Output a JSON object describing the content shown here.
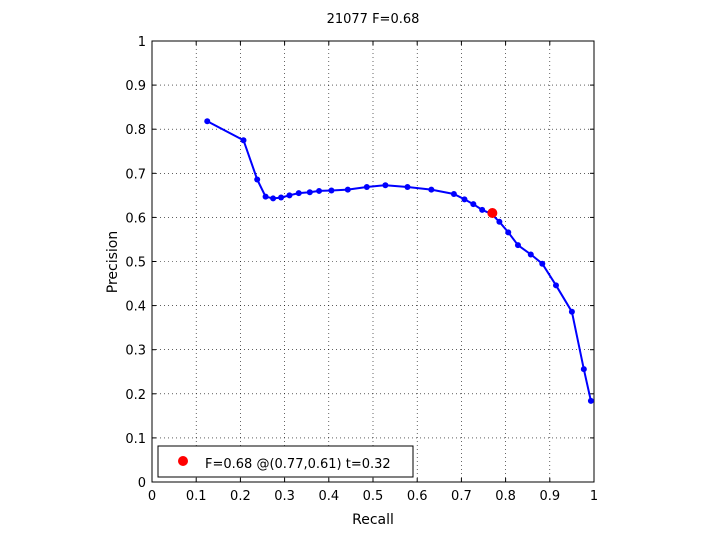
{
  "chart_data": {
    "type": "line",
    "title": "21077 F=0.68",
    "xlabel": "Recall",
    "ylabel": "Precision",
    "xlim": [
      0,
      1
    ],
    "ylim": [
      0,
      1
    ],
    "grid": true,
    "x_ticks": [
      "0",
      "0.1",
      "0.2",
      "0.3",
      "0.4",
      "0.5",
      "0.6",
      "0.7",
      "0.8",
      "0.9",
      "1"
    ],
    "y_ticks": [
      "0",
      "0.1",
      "0.2",
      "0.3",
      "0.4",
      "0.5",
      "0.6",
      "0.7",
      "0.8",
      "0.9",
      "1"
    ],
    "series": [
      {
        "color": "#0000ff",
        "points": [
          [
            0.125,
            0.818
          ],
          [
            0.207,
            0.775
          ],
          [
            0.238,
            0.686
          ],
          [
            0.257,
            0.647
          ],
          [
            0.274,
            0.643
          ],
          [
            0.292,
            0.645
          ],
          [
            0.311,
            0.65
          ],
          [
            0.332,
            0.655
          ],
          [
            0.357,
            0.657
          ],
          [
            0.378,
            0.66
          ],
          [
            0.406,
            0.661
          ],
          [
            0.443,
            0.663
          ],
          [
            0.486,
            0.669
          ],
          [
            0.528,
            0.673
          ],
          [
            0.578,
            0.669
          ],
          [
            0.632,
            0.663
          ],
          [
            0.683,
            0.653
          ],
          [
            0.707,
            0.641
          ],
          [
            0.727,
            0.63
          ],
          [
            0.747,
            0.617
          ],
          [
            0.768,
            0.608
          ],
          [
            0.786,
            0.59
          ],
          [
            0.806,
            0.566
          ],
          [
            0.828,
            0.537
          ],
          [
            0.857,
            0.516
          ],
          [
            0.883,
            0.495
          ],
          [
            0.914,
            0.446
          ],
          [
            0.95,
            0.386
          ],
          [
            0.977,
            0.256
          ],
          [
            0.993,
            0.184
          ]
        ]
      }
    ],
    "highlight": {
      "x": 0.77,
      "y": 0.61,
      "color": "#ff0000"
    },
    "legend": {
      "position": "bottom-left",
      "text": "F=0.68 @(0.77,0.61) t=0.32"
    }
  }
}
